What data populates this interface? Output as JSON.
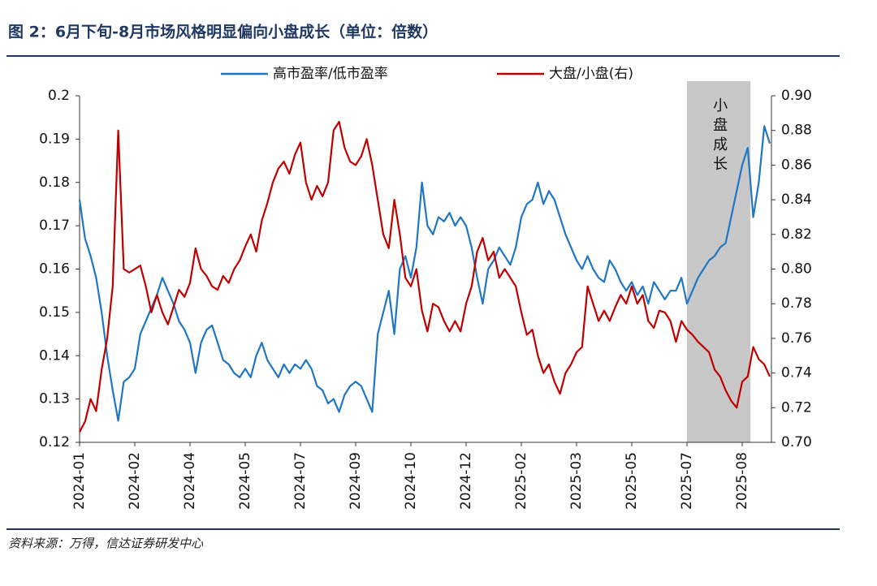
{
  "chart_data": {
    "type": "line",
    "title": "图 2：6月下旬-8月市场风格明显偏向小盘成长（单位：倍数）",
    "source": "资料来源：万得，信达证券研发中心",
    "categories": [
      "2024-01",
      null,
      null,
      null,
      null,
      null,
      null,
      null,
      null,
      null,
      "2024-02",
      null,
      null,
      null,
      null,
      null,
      null,
      null,
      null,
      null,
      "2024-04",
      null,
      null,
      null,
      null,
      null,
      null,
      null,
      null,
      null,
      "2024-05",
      null,
      null,
      null,
      null,
      null,
      null,
      null,
      null,
      null,
      "2024-07",
      null,
      null,
      null,
      null,
      null,
      null,
      null,
      null,
      null,
      "2024-09",
      null,
      null,
      null,
      null,
      null,
      null,
      null,
      null,
      null,
      "2024-10",
      null,
      null,
      null,
      null,
      null,
      null,
      null,
      null,
      null,
      "2024-12",
      null,
      null,
      null,
      null,
      null,
      null,
      null,
      null,
      null,
      "2025-02",
      null,
      null,
      null,
      null,
      null,
      null,
      null,
      null,
      null,
      "2025-03",
      null,
      null,
      null,
      null,
      null,
      null,
      null,
      null,
      null,
      "2025-05",
      null,
      null,
      null,
      null,
      null,
      null,
      null,
      null,
      null,
      "2025-07",
      null,
      null,
      null,
      null,
      null,
      null,
      null,
      null,
      null,
      "2025-08",
      null,
      null,
      null,
      null,
      null
    ],
    "series": [
      {
        "name": "高市盈率/低市盈率",
        "color": "#1f77c4",
        "axis": "y",
        "values": [
          0.176,
          0.167,
          0.163,
          0.158,
          0.15,
          0.14,
          0.132,
          0.125,
          0.134,
          0.135,
          0.137,
          0.145,
          0.148,
          0.151,
          0.154,
          0.158,
          0.155,
          0.152,
          0.148,
          0.146,
          0.143,
          0.136,
          0.143,
          0.146,
          0.147,
          0.143,
          0.139,
          0.138,
          0.136,
          0.135,
          0.137,
          0.135,
          0.14,
          0.143,
          0.139,
          0.137,
          0.135,
          0.138,
          0.136,
          0.138,
          0.137,
          0.139,
          0.137,
          0.133,
          0.132,
          0.129,
          0.13,
          0.127,
          0.131,
          0.133,
          0.134,
          0.133,
          0.13,
          0.127,
          0.145,
          0.15,
          0.155,
          0.145,
          0.16,
          0.163,
          0.158,
          0.165,
          0.18,
          0.17,
          0.168,
          0.172,
          0.171,
          0.173,
          0.17,
          0.172,
          0.17,
          0.165,
          0.158,
          0.152,
          0.16,
          0.162,
          0.165,
          0.163,
          0.161,
          0.165,
          0.172,
          0.175,
          0.176,
          0.18,
          0.175,
          0.178,
          0.176,
          0.172,
          0.168,
          0.165,
          0.162,
          0.16,
          0.163,
          0.16,
          0.158,
          0.157,
          0.162,
          0.16,
          0.157,
          0.155,
          0.157,
          0.154,
          0.156,
          0.152,
          0.157,
          0.155,
          0.153,
          0.155,
          0.155,
          0.158,
          0.152,
          0.155,
          0.158,
          0.16,
          0.162,
          0.163,
          0.165,
          0.166,
          0.172,
          0.178,
          0.184,
          0.188,
          0.172,
          0.18,
          0.193,
          0.189
        ]
      },
      {
        "name": "大盘/小盘(右)",
        "color": "#c00000",
        "axis": "y2",
        "values": [
          0.706,
          0.712,
          0.725,
          0.718,
          0.742,
          0.76,
          0.79,
          0.88,
          0.8,
          0.798,
          0.8,
          0.802,
          0.79,
          0.775,
          0.785,
          0.775,
          0.768,
          0.778,
          0.788,
          0.784,
          0.792,
          0.812,
          0.8,
          0.796,
          0.79,
          0.788,
          0.796,
          0.792,
          0.8,
          0.805,
          0.813,
          0.82,
          0.81,
          0.828,
          0.838,
          0.85,
          0.858,
          0.862,
          0.855,
          0.866,
          0.873,
          0.85,
          0.84,
          0.848,
          0.842,
          0.85,
          0.88,
          0.885,
          0.87,
          0.862,
          0.86,
          0.865,
          0.875,
          0.86,
          0.84,
          0.82,
          0.812,
          0.84,
          0.82,
          0.795,
          0.79,
          0.8,
          0.776,
          0.764,
          0.78,
          0.778,
          0.77,
          0.764,
          0.77,
          0.764,
          0.78,
          0.79,
          0.81,
          0.818,
          0.805,
          0.81,
          0.795,
          0.8,
          0.795,
          0.79,
          0.775,
          0.762,
          0.765,
          0.75,
          0.74,
          0.745,
          0.735,
          0.728,
          0.74,
          0.745,
          0.752,
          0.755,
          0.79,
          0.78,
          0.77,
          0.776,
          0.77,
          0.778,
          0.785,
          0.78,
          0.79,
          0.78,
          0.785,
          0.77,
          0.766,
          0.776,
          0.775,
          0.77,
          0.758,
          0.77,
          0.765,
          0.762,
          0.758,
          0.755,
          0.752,
          0.742,
          0.738,
          0.73,
          0.724,
          0.72,
          0.735,
          0.738,
          0.755,
          0.748,
          0.745,
          0.738
        ]
      }
    ],
    "ylim": [
      0.12,
      0.2
    ],
    "yticks": [
      0.12,
      0.13,
      0.14,
      0.15,
      0.16,
      0.17,
      0.18,
      0.19,
      0.2
    ],
    "y2lim": [
      0.7,
      0.9
    ],
    "y2ticks": [
      {
        "value": 0.7,
        "label": "0.70"
      },
      0.72,
      0.74,
      0.76,
      0.78,
      {
        "value": 0.8,
        "label": "0.80"
      },
      0.82,
      0.84,
      0.86,
      0.88,
      {
        "value": 0.9,
        "label": "0.90"
      }
    ],
    "shade": {
      "x": [
        110,
        121.5
      ],
      "color": "#c8c8c8",
      "label": "小盘成长"
    },
    "legend": "top"
  }
}
